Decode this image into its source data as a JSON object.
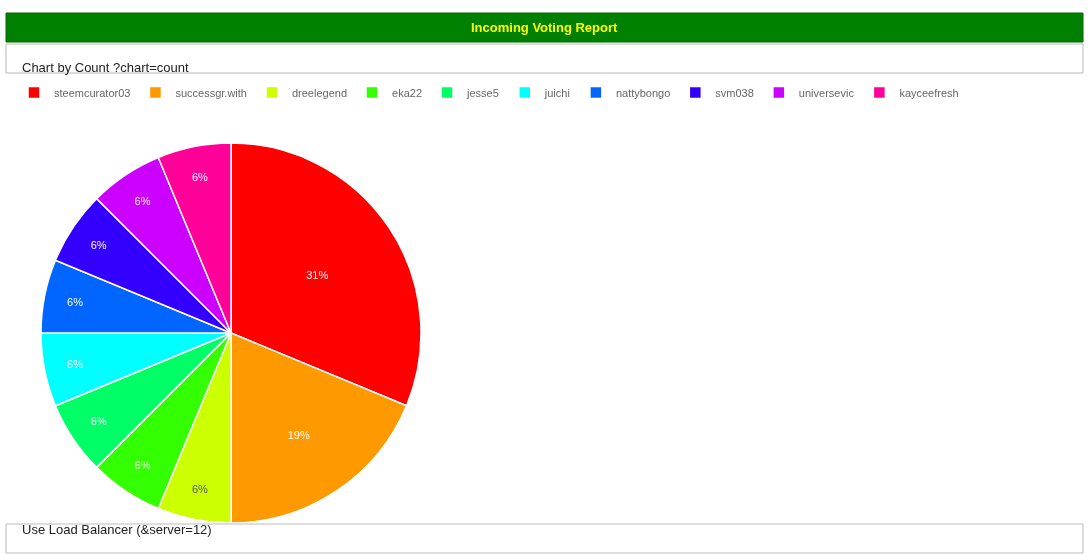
{
  "chart_data": {
    "type": "pie",
    "title": "Incoming Voting Report",
    "categories": [
      "steemcurator03",
      "successgr.with",
      "dreelegend",
      "eka22",
      "jesse5",
      "juichi",
      "nattybongo",
      "svm038",
      "universevic",
      "kayceefresh"
    ],
    "values": [
      31.25,
      18.75,
      6.25,
      6.25,
      6.25,
      6.25,
      6.25,
      6.25,
      6.25,
      6.25
    ],
    "value_labels": [
      "31%",
      "19%",
      "6%",
      "6%",
      "6%",
      "6%",
      "6%",
      "6%",
      "6%",
      "6%"
    ],
    "colors": [
      "#ff0000",
      "#ff9900",
      "#ccff00",
      "#33ff00",
      "#00ff66",
      "#00ffff",
      "#0066ff",
      "#3300ff",
      "#cc00ff",
      "#ff0099"
    ],
    "legend": "top",
    "annotations": [
      "Chart by Count ?chart=count",
      "Use Load Balancer (&server=12)"
    ]
  }
}
